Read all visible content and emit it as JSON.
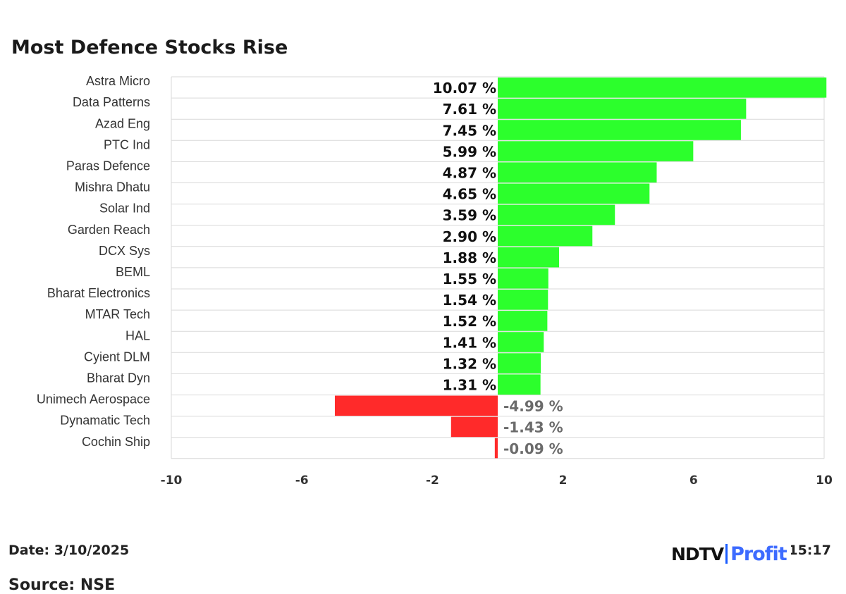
{
  "chart_data": {
    "type": "bar",
    "orientation": "horizontal",
    "title": "Most Defence Stocks Rise",
    "categories": [
      "Astra Micro",
      "Data Patterns",
      "Azad Eng",
      "PTC Ind",
      "Paras Defence",
      "Mishra Dhatu",
      "Solar Ind",
      "Garden Reach",
      "DCX Sys",
      "BEML",
      "Bharat Electronics",
      "MTAR Tech",
      "HAL",
      "Cyient DLM",
      "Bharat Dyn",
      "Unimech Aerospace",
      "Dynamatic Tech",
      "Cochin Ship"
    ],
    "values": [
      10.07,
      7.61,
      7.45,
      5.99,
      4.87,
      4.65,
      3.59,
      2.9,
      1.88,
      1.55,
      1.54,
      1.52,
      1.41,
      1.32,
      1.31,
      -4.99,
      -1.43,
      -0.09
    ],
    "value_labels": [
      "10.07 %",
      "7.61 %",
      "7.45 %",
      "5.99 %",
      "4.87 %",
      "4.65 %",
      "3.59 %",
      "2.90 %",
      "1.88 %",
      "1.55 %",
      "1.54 %",
      "1.52 %",
      "1.41 %",
      "1.32 %",
      "1.31 %",
      "-4.99 %",
      "-1.43 %",
      "-0.09 %"
    ],
    "xlim": [
      -10,
      10
    ],
    "xticks": [
      -10,
      -6,
      -2,
      2,
      6,
      10
    ],
    "xtick_labels": [
      "-10",
      "-6",
      "-2",
      "2",
      "6",
      "10"
    ],
    "colors": {
      "positive": "#2cff2c",
      "negative": "#ff2a2a",
      "positive_label": "#111111",
      "negative_label": "#6b6b6b",
      "gridline": "#d9d9d9"
    }
  },
  "footer": {
    "date": "Date: 3/10/2025",
    "time": "Time: 15:17",
    "source": "Source: NSE"
  },
  "logo": {
    "ndtv": "NDTV",
    "profit": "Profit"
  }
}
